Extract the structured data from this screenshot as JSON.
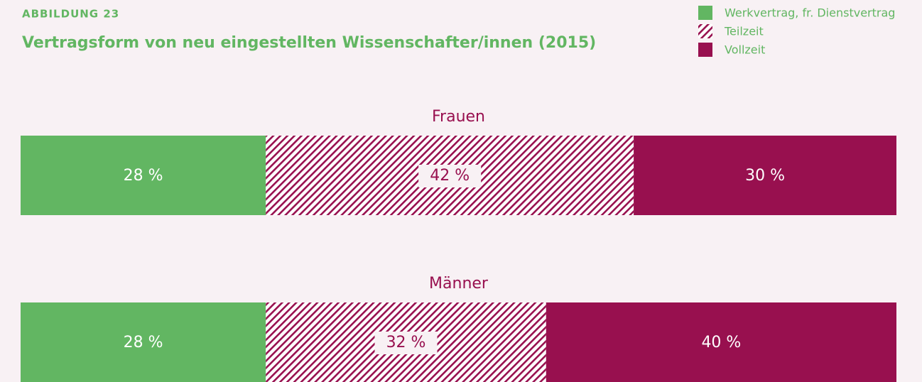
{
  "chart_data": {
    "type": "stacked-bar-horizontal",
    "subtitle": "ABBILDUNG 23",
    "title": "Vertragsform von neu eingestellten Wissenschafter/innen (2015)",
    "categories": [
      "Frauen",
      "Männer"
    ],
    "xlim": [
      0,
      100
    ],
    "series": [
      {
        "name": "Werkvertrag, fr. Dienstvertrag",
        "color": "#62b662",
        "values": [
          28,
          28
        ],
        "value_labels": [
          "28 %",
          "28 %"
        ]
      },
      {
        "name": "Teilzeit",
        "color": "#98104f",
        "hatch": true,
        "values": [
          42,
          32
        ],
        "value_labels": [
          "42 %",
          "32 %"
        ]
      },
      {
        "name": "Vollzeit",
        "color": "#98104f",
        "values": [
          30,
          40
        ],
        "value_labels": [
          "30 %",
          "40 %"
        ]
      }
    ]
  }
}
